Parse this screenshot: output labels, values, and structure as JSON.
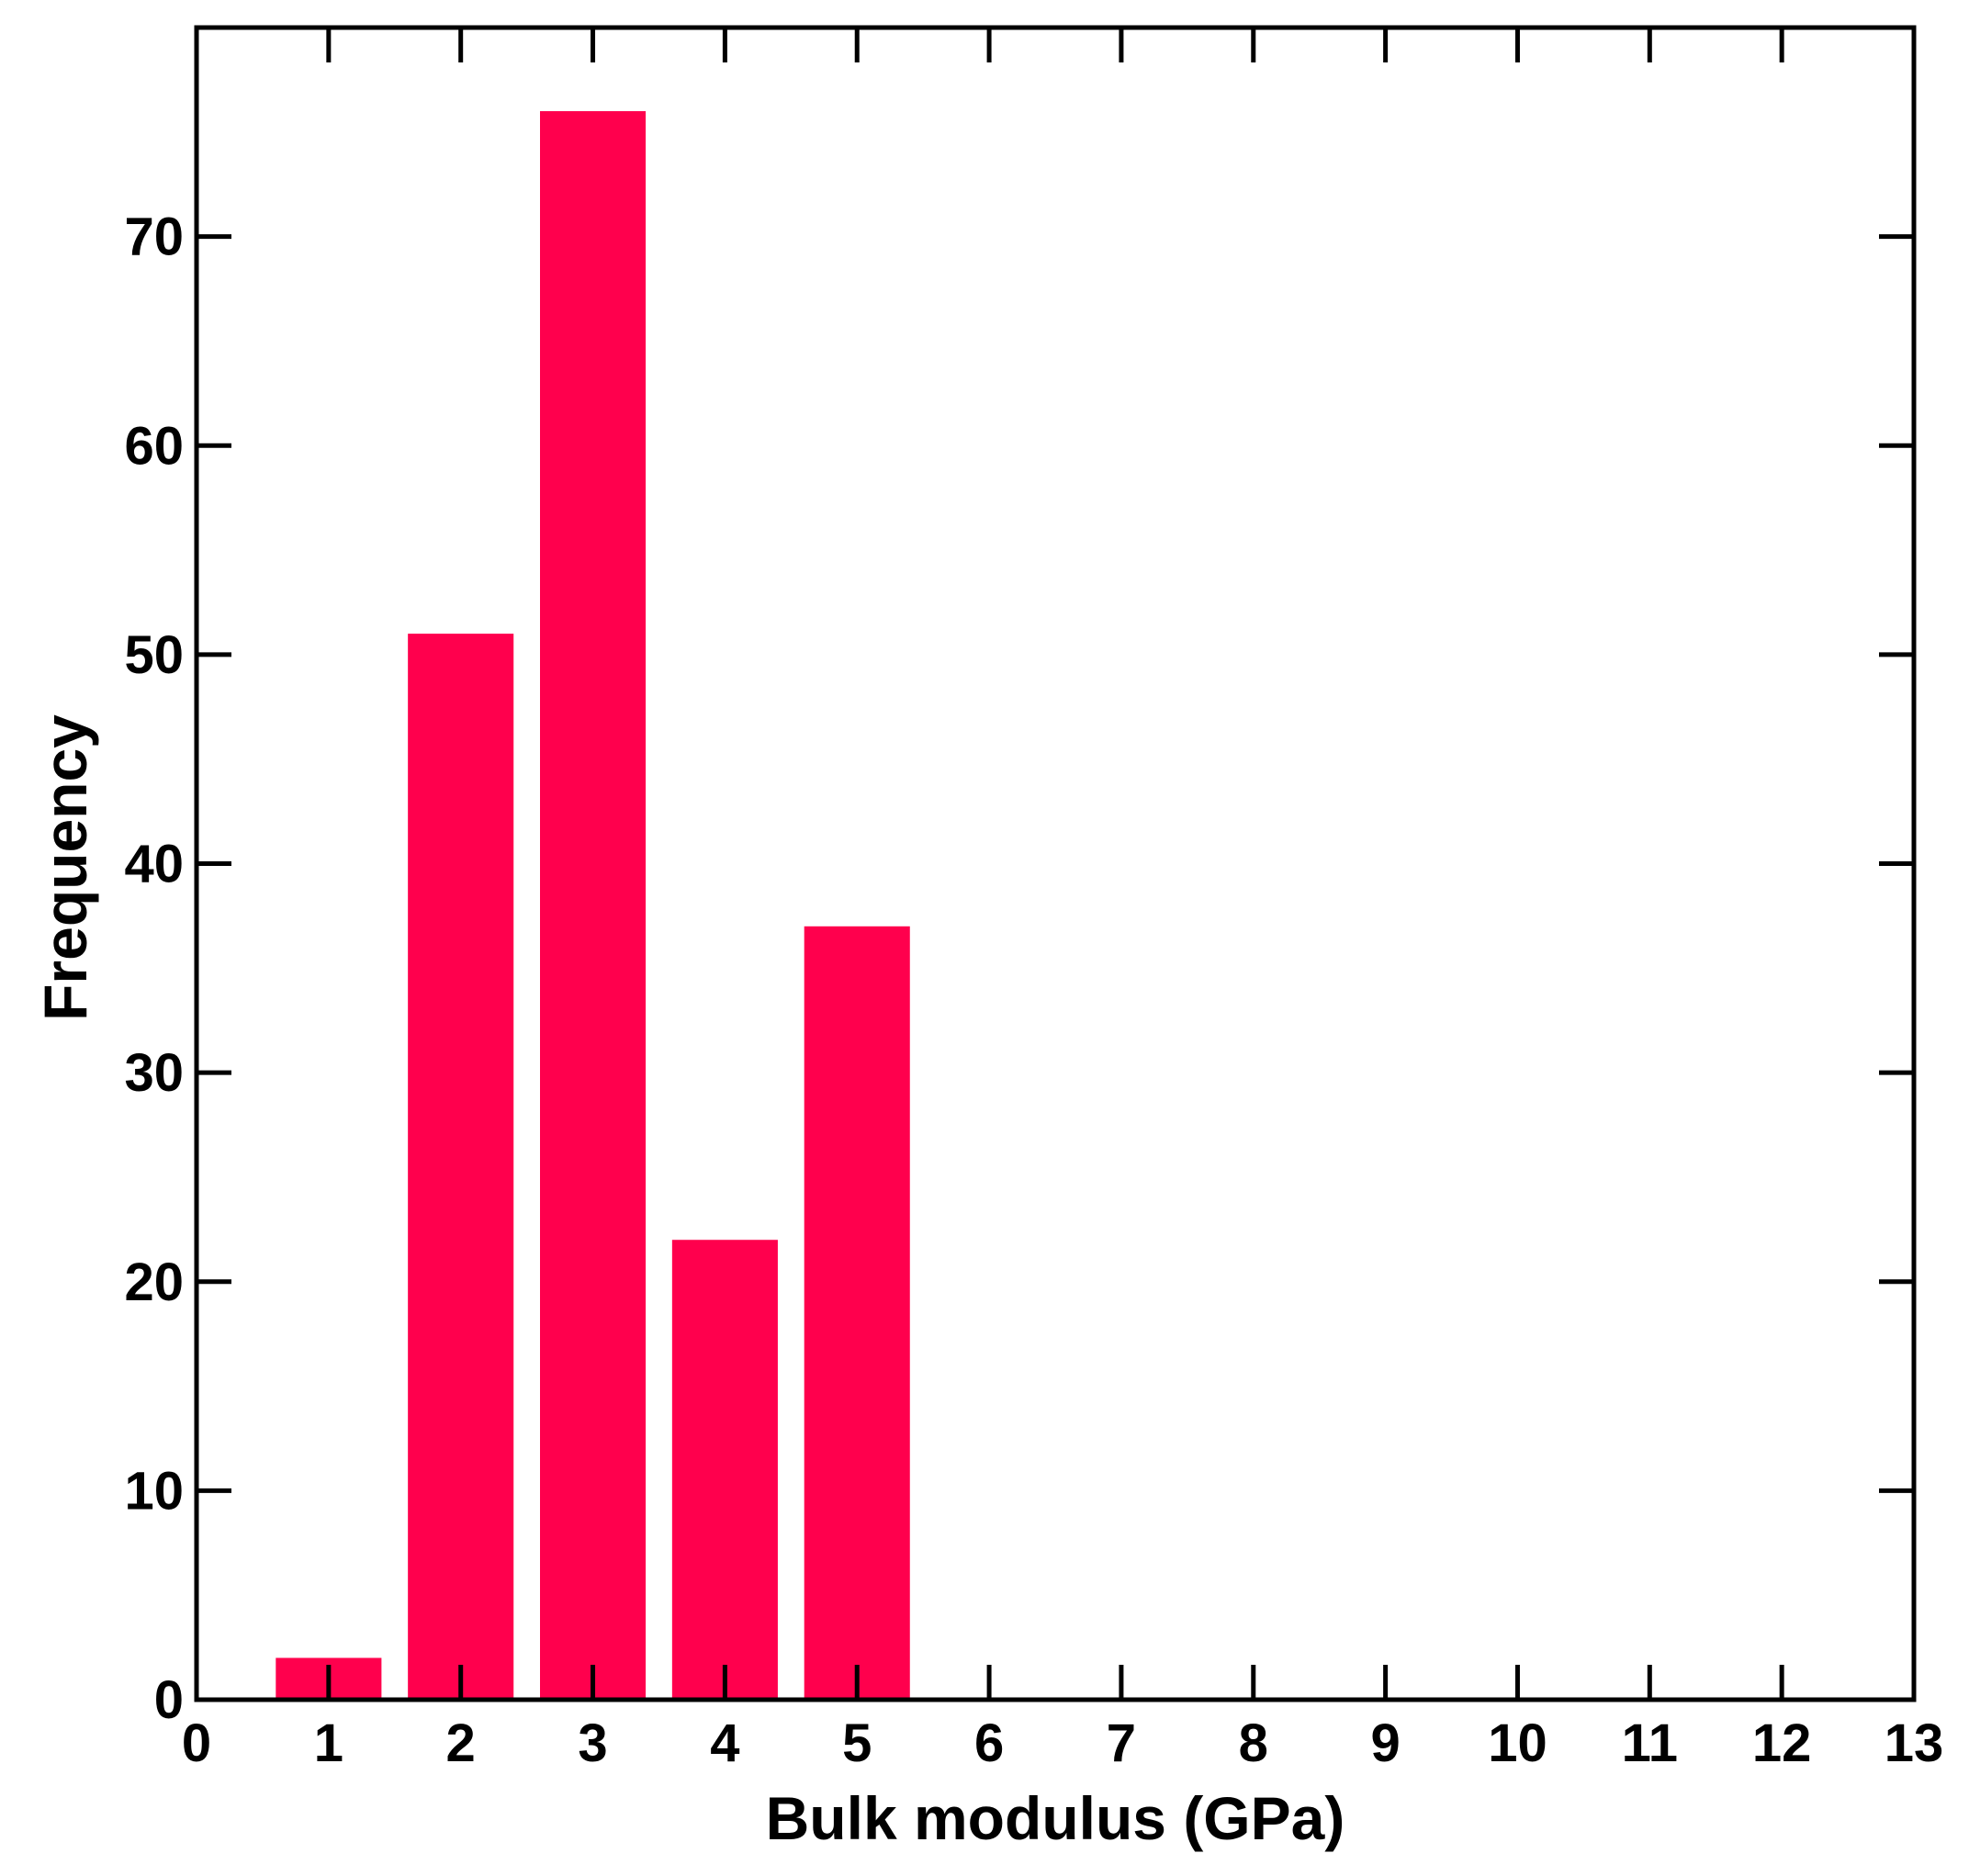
{
  "chart_data": {
    "type": "bar",
    "title": "",
    "xlabel": "Bulk modulus (GPa)",
    "ylabel": "Frequency",
    "categories": [
      1,
      2,
      3,
      4,
      5
    ],
    "values": [
      2,
      51,
      76,
      22,
      37
    ],
    "bar_width": 0.8,
    "xlim": [
      0,
      13
    ],
    "ylim": [
      0,
      80
    ],
    "xticks": [
      0,
      1,
      2,
      3,
      4,
      5,
      6,
      7,
      8,
      9,
      10,
      11,
      12,
      13
    ],
    "yticks": [
      0,
      10,
      20,
      30,
      40,
      50,
      60,
      70
    ],
    "grid": false,
    "bar_color": "#ff004d",
    "axis_color": "#000000"
  }
}
